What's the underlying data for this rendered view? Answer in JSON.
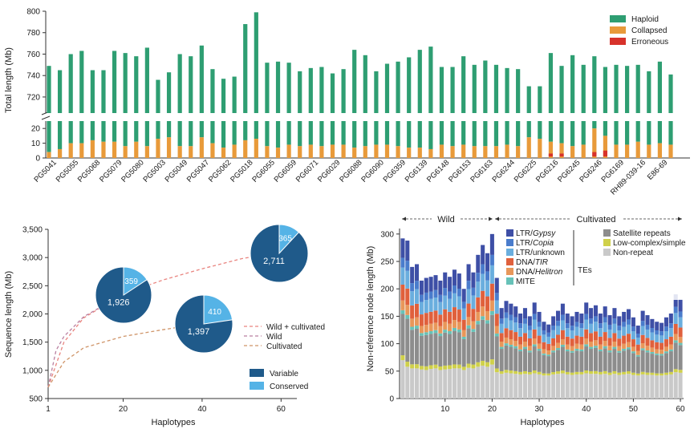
{
  "colors": {
    "haploid": "#2e9e72",
    "collapsed": "#e89a3a",
    "erroneous": "#d7322b",
    "variable": "#1f5a8a",
    "conserved": "#55b3e6",
    "curve_wc": "#e9847f",
    "curve_wild": "#b97fa0",
    "curve_cult": "#cf9468",
    "ltr_gypsy": "#3e4fa6",
    "ltr_copia": "#4a7ccc",
    "ltr_unknown": "#6aaede",
    "dna_tir": "#e0603c",
    "dna_helitron": "#e8975a",
    "mite": "#67c2b8",
    "satellite": "#8d8d8d",
    "low_complex": "#cfd04a",
    "non_repeat": "#c9c9c9"
  },
  "chart_data": [
    {
      "type": "bar",
      "subtype": "stacked-broken-axis",
      "ylabel": "Total length (Mb)",
      "yticks_upper": [
        "720",
        "740",
        "760",
        "780",
        "800"
      ],
      "yticks_lower": [
        "0",
        "10",
        "20"
      ],
      "ylim_upper": [
        705,
        800
      ],
      "ylim_lower": [
        0,
        25
      ],
      "legend": [
        "Haploid",
        "Collapsed",
        "Erroneous"
      ],
      "categories": [
        "PG5041",
        "PG5055",
        "PG5068",
        "PG5079",
        "PG5080",
        "PG5003",
        "PG5049",
        "PG5047",
        "PG5062",
        "PG5018",
        "PG6055",
        "PG6059",
        "PG6071",
        "PG6029",
        "PG6088",
        "PG6090",
        "PG6359",
        "PG6139",
        "PG6148",
        "PG6153",
        "PG6163",
        "PG6244",
        "PG6225",
        "PG6216",
        "PG6245",
        "PG6246",
        "PG6169",
        "RH89-039-16",
        "E86-69"
      ],
      "totals": [
        749,
        745,
        760,
        763,
        745,
        745,
        763,
        761,
        758,
        766,
        736,
        743,
        760,
        758,
        768,
        746,
        737,
        739,
        788,
        799,
        752,
        753,
        752,
        744,
        747,
        748,
        742,
        746,
        764,
        759,
        744,
        751,
        753,
        757,
        764,
        767,
        748,
        748,
        758,
        750,
        754,
        750,
        747,
        746,
        730,
        730,
        761,
        749,
        759,
        750,
        758,
        748,
        750,
        749,
        750,
        744,
        753,
        741
      ],
      "collapsed": [
        4,
        6,
        10,
        10,
        12,
        11,
        11,
        8,
        11,
        8,
        13,
        14,
        8,
        8,
        14,
        10,
        7,
        9,
        12,
        13,
        8,
        7,
        9,
        8,
        9,
        8,
        9,
        9,
        7,
        8,
        9,
        9,
        8,
        7,
        7,
        6,
        9,
        8,
        9,
        8,
        8,
        8,
        9,
        8,
        14,
        13,
        11,
        10,
        8,
        9,
        20,
        15,
        9,
        9,
        11,
        9,
        10,
        9
      ],
      "erroneous": [
        0,
        0,
        0,
        0,
        0,
        0,
        0,
        0,
        0,
        0,
        0,
        0,
        0,
        0,
        0,
        0,
        0,
        0,
        0,
        0,
        0,
        0,
        0,
        0,
        0,
        0,
        0,
        0,
        0,
        0,
        0,
        0,
        0,
        0,
        0,
        0,
        0,
        0,
        0,
        0,
        0,
        0,
        0,
        0,
        0,
        0,
        2,
        2,
        0,
        0,
        3,
        4,
        0,
        0,
        0,
        0,
        0,
        0
      ]
    },
    {
      "type": "line",
      "subtype": "accumulation-curves-with-pies",
      "xlabel": "Haplotypes",
      "ylabel": "Sequence length (Mb)",
      "xticks": [
        "1",
        "20",
        "40",
        "60"
      ],
      "yticks": [
        "500",
        "1,000",
        "1,500",
        "2,000",
        "2,500",
        "3,000",
        "3,500"
      ],
      "xlim": [
        1,
        64
      ],
      "ylim": [
        500,
        3500
      ],
      "series": [
        {
          "name": "Wild + cultivated",
          "x": [
            1,
            5,
            10,
            20,
            30,
            40,
            50,
            58
          ],
          "y": [
            700,
            1500,
            1930,
            2350,
            2600,
            2800,
            2980,
            3076
          ]
        },
        {
          "name": "Wild",
          "x": [
            1,
            3,
            5,
            10,
            15,
            20
          ],
          "y": [
            700,
            1350,
            1600,
            1950,
            2150,
            2285
          ]
        },
        {
          "name": "Cultivated",
          "x": [
            1,
            5,
            10,
            20,
            30,
            38
          ],
          "y": [
            700,
            1150,
            1400,
            1600,
            1720,
            1807
          ]
        }
      ],
      "pies": [
        {
          "label": "wild",
          "variable": 1926,
          "conserved": 359,
          "variable_label": "1,926",
          "conserved_label": "359"
        },
        {
          "label": "cultivated",
          "variable": 1397,
          "conserved": 410,
          "variable_label": "1,397",
          "conserved_label": "410"
        },
        {
          "label": "wild+cultivated",
          "variable": 2711,
          "conserved": 365,
          "variable_label": "2,711",
          "conserved_label": "365"
        }
      ],
      "legend_lines": [
        "Wild + cultivated",
        "Wild",
        "Cultivated"
      ],
      "legend_boxes": [
        "Variable",
        "Conserved"
      ]
    },
    {
      "type": "bar",
      "subtype": "stacked",
      "xlabel": "Haplotypes",
      "ylabel": "Non-reference node length (Mb)",
      "xticks": [
        "10",
        "20",
        "30",
        "40",
        "50",
        "60"
      ],
      "yticks": [
        "0",
        "50",
        "100",
        "150",
        "200",
        "250",
        "300"
      ],
      "ylim": [
        0,
        310
      ],
      "group_wild": "Wild",
      "group_cultivated": "Cultivated",
      "tes_label": "TEs",
      "legend_left": [
        {
          "label": "LTR/",
          "italic": "Gypsy",
          "key": "ltr_gypsy"
        },
        {
          "label": "LTR/",
          "italic": "Copia",
          "key": "ltr_copia"
        },
        {
          "label": "LTR/unknown",
          "italic": "",
          "key": "ltr_unknown"
        },
        {
          "label": "DNA/",
          "italic": "TIR",
          "key": "dna_tir"
        },
        {
          "label": "DNA/",
          "italic": "Helitron",
          "key": "dna_helitron"
        },
        {
          "label": "MITE",
          "italic": "",
          "key": "mite"
        }
      ],
      "legend_right": [
        {
          "label": "Satellite repeats",
          "key": "satellite"
        },
        {
          "label": "Low-complex/simple",
          "key": "low_complex"
        },
        {
          "label": "Non-repeat",
          "key": "non_repeat"
        }
      ],
      "totals": [
        292,
        288,
        240,
        245,
        215,
        220,
        222,
        225,
        215,
        230,
        222,
        235,
        228,
        200,
        245,
        230,
        262,
        280,
        265,
        300,
        220,
        165,
        178,
        173,
        168,
        155,
        165,
        150,
        175,
        158,
        140,
        135,
        150,
        160,
        173,
        155,
        150,
        158,
        155,
        175,
        165,
        170,
        155,
        168,
        152,
        165,
        150,
        158,
        163,
        148,
        133,
        160,
        152,
        145,
        140,
        138,
        148,
        155,
        190,
        180
      ],
      "nonrepeat": [
        70,
        58,
        55,
        55,
        53,
        52,
        54,
        55,
        52,
        53,
        54,
        55,
        55,
        52,
        56,
        55,
        58,
        60,
        58,
        62,
        48,
        45,
        47,
        46,
        45,
        44,
        45,
        44,
        46,
        44,
        42,
        42,
        44,
        45,
        46,
        44,
        43,
        44,
        44,
        46,
        45,
        45,
        44,
        45,
        43,
        45,
        43,
        44,
        45,
        43,
        42,
        44,
        43,
        43,
        42,
        42,
        43,
        44,
        48,
        47
      ]
    }
  ]
}
